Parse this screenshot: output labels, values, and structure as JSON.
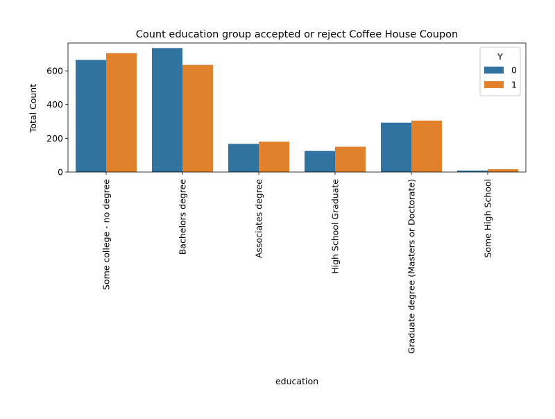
{
  "chart_data": {
    "type": "bar",
    "title": "Count education group accepted or reject Coffee House Coupon",
    "xlabel": "education",
    "ylabel": "Total Count",
    "categories": [
      "Some college - no degree",
      "Bachelors degree",
      "Associates degree",
      "High School Graduate",
      "Graduate degree (Masters or Doctorate)",
      "Some High School"
    ],
    "series": [
      {
        "name": "0",
        "color": "#3274a1",
        "values": [
          665,
          735,
          167,
          125,
          293,
          9
        ]
      },
      {
        "name": "1",
        "color": "#e1812c",
        "values": [
          705,
          635,
          180,
          150,
          305,
          17
        ]
      }
    ],
    "ylim": [
      0,
      765
    ],
    "yticks": [
      0,
      200,
      400,
      600
    ],
    "legend": {
      "title": "Y",
      "position": "top-right"
    },
    "grid": false
  }
}
